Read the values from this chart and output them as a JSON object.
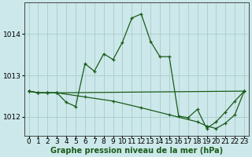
{
  "title": "Graphe pression niveau de la mer (hPa)",
  "background_color": "#cce8ea",
  "grid_color": "#aacccc",
  "line_color": "#1a5c1a",
  "xlim": [
    -0.5,
    23.5
  ],
  "ylim": [
    1011.55,
    1014.75
  ],
  "yticks": [
    1012,
    1013,
    1014
  ],
  "xticks": [
    0,
    1,
    2,
    3,
    4,
    5,
    6,
    7,
    8,
    9,
    10,
    11,
    12,
    13,
    14,
    15,
    16,
    17,
    18,
    19,
    20,
    21,
    22,
    23
  ],
  "series1_x": [
    0,
    1,
    2,
    3,
    4,
    5,
    6,
    7,
    8,
    9,
    10,
    11,
    12,
    13,
    14,
    15,
    16,
    17,
    18,
    19,
    20,
    21,
    22,
    23
  ],
  "series1_y": [
    1012.62,
    1012.58,
    1012.58,
    1012.58,
    1012.35,
    1012.25,
    1013.28,
    1013.1,
    1013.52,
    1013.38,
    1013.8,
    1014.38,
    1014.48,
    1013.82,
    1013.45,
    1013.45,
    1012.02,
    1011.98,
    1012.18,
    1011.72,
    1011.88,
    1012.12,
    1012.38,
    1012.62
  ],
  "series2_x": [
    0,
    1,
    2,
    3,
    23
  ],
  "series2_y": [
    1012.62,
    1012.58,
    1012.58,
    1012.58,
    1012.62
  ],
  "series3_x": [
    0,
    1,
    2,
    3,
    6,
    9,
    12,
    15,
    18,
    19,
    20,
    21,
    22,
    23
  ],
  "series3_y": [
    1012.62,
    1012.58,
    1012.58,
    1012.58,
    1012.48,
    1012.38,
    1012.22,
    1012.05,
    1011.88,
    1011.78,
    1011.72,
    1011.85,
    1012.05,
    1012.62
  ],
  "xlabel_fontsize": 7,
  "tick_fontsize": 6.5
}
